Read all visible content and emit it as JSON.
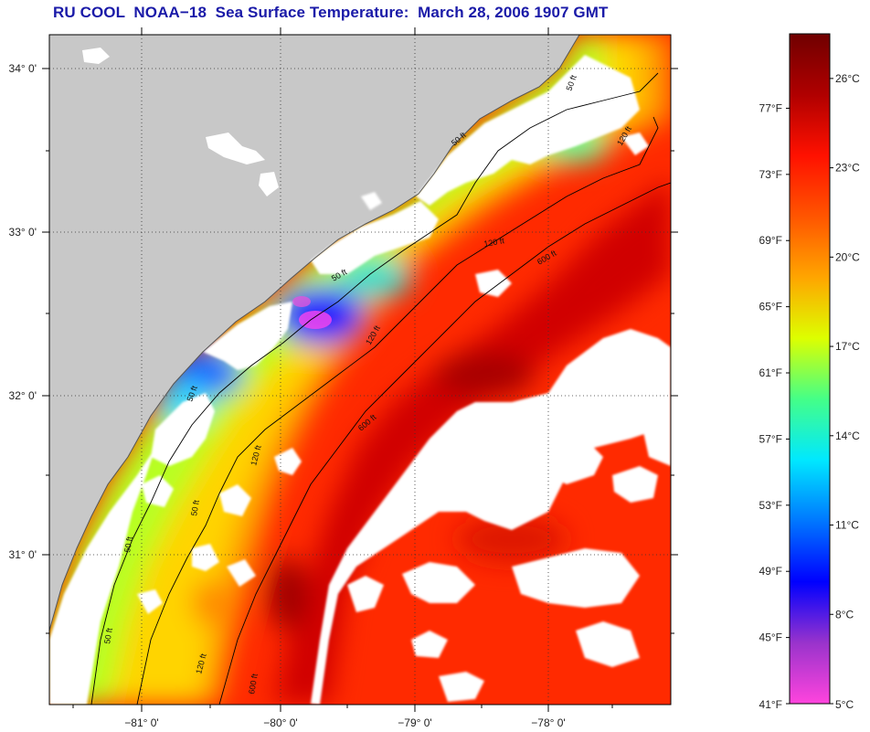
{
  "title": "RU COOL  NOAA−18  Sea Surface Temperature:  March 28, 2006 1907 GMT",
  "map": {
    "lat_labels": [
      "34° 0'",
      "33° 0'",
      "32° 0'",
      "31° 0'"
    ],
    "lon_labels": [
      "−81° 0'",
      "−80° 0'",
      "−79° 0'",
      "−78° 0'"
    ],
    "contour_labels": [
      "50 ft",
      "50 ft",
      "120 ft",
      "120 ft",
      "600 ft",
      "50 ft",
      "120 ft",
      "50 ft",
      "600 ft",
      "120 ft",
      "50 ft",
      "50 ft",
      "50 ft",
      "120 ft",
      "600 ft"
    ],
    "colors": {
      "land": "#c8c8c8",
      "cloud": "#ffffff",
      "frame": "#000000"
    }
  },
  "colorbar": {
    "fahrenheit_labels": [
      "77°F",
      "73°F",
      "69°F",
      "65°F",
      "61°F",
      "57°F",
      "53°F",
      "49°F",
      "45°F",
      "41°F"
    ],
    "celsius_labels": [
      "26°C",
      "23°C",
      "20°C",
      "17°C",
      "14°C",
      "11°C",
      "8°C",
      "5°C"
    ],
    "range_celsius": [
      5,
      27.5
    ],
    "gradient_colors": [
      "#ff44dd",
      "#9933cc",
      "#0000ff",
      "#0077ff",
      "#00e8ff",
      "#44ff88",
      "#ddff00",
      "#ffa500",
      "#ff5500",
      "#ff1100",
      "#b00000",
      "#700000"
    ]
  }
}
